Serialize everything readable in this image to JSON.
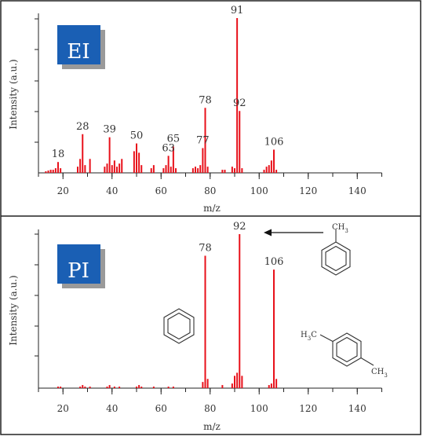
{
  "chart_data": [
    {
      "type": "bar",
      "panel": "EI",
      "xlabel": "m/z",
      "ylabel": "Intensity (a.u.)",
      "xlim": [
        10,
        150
      ],
      "x_ticks": [
        20,
        40,
        60,
        80,
        100,
        120,
        140
      ],
      "y_unit_max": 100,
      "color": "#e8101a",
      "peaks": [
        {
          "x": 13,
          "y": 1
        },
        {
          "x": 14,
          "y": 1.5
        },
        {
          "x": 15,
          "y": 2
        },
        {
          "x": 16,
          "y": 2
        },
        {
          "x": 17,
          "y": 3
        },
        {
          "x": 18,
          "y": 7
        },
        {
          "x": 19,
          "y": 3
        },
        {
          "x": 26,
          "y": 4
        },
        {
          "x": 27,
          "y": 9
        },
        {
          "x": 28,
          "y": 25
        },
        {
          "x": 29,
          "y": 5
        },
        {
          "x": 31,
          "y": 9
        },
        {
          "x": 37,
          "y": 4
        },
        {
          "x": 38,
          "y": 6
        },
        {
          "x": 39,
          "y": 23
        },
        {
          "x": 40,
          "y": 5
        },
        {
          "x": 41,
          "y": 8
        },
        {
          "x": 42,
          "y": 4
        },
        {
          "x": 43,
          "y": 6
        },
        {
          "x": 44,
          "y": 9
        },
        {
          "x": 49,
          "y": 14
        },
        {
          "x": 50,
          "y": 19
        },
        {
          "x": 51,
          "y": 13
        },
        {
          "x": 52,
          "y": 5
        },
        {
          "x": 56,
          "y": 3
        },
        {
          "x": 57,
          "y": 5
        },
        {
          "x": 61,
          "y": 3
        },
        {
          "x": 62,
          "y": 5
        },
        {
          "x": 63,
          "y": 11
        },
        {
          "x": 64,
          "y": 4
        },
        {
          "x": 65,
          "y": 17
        },
        {
          "x": 66,
          "y": 3
        },
        {
          "x": 73,
          "y": 3
        },
        {
          "x": 74,
          "y": 4
        },
        {
          "x": 75,
          "y": 3
        },
        {
          "x": 76,
          "y": 5
        },
        {
          "x": 77,
          "y": 16
        },
        {
          "x": 78,
          "y": 42
        },
        {
          "x": 79,
          "y": 4
        },
        {
          "x": 85,
          "y": 2
        },
        {
          "x": 86,
          "y": 2
        },
        {
          "x": 89,
          "y": 4
        },
        {
          "x": 90,
          "y": 3
        },
        {
          "x": 91,
          "y": 100
        },
        {
          "x": 92,
          "y": 40
        },
        {
          "x": 93,
          "y": 3
        },
        {
          "x": 102,
          "y": 2
        },
        {
          "x": 103,
          "y": 4
        },
        {
          "x": 104,
          "y": 5
        },
        {
          "x": 105,
          "y": 8
        },
        {
          "x": 106,
          "y": 15
        },
        {
          "x": 107,
          "y": 2
        }
      ],
      "labels": [
        {
          "x": 18,
          "text": "18"
        },
        {
          "x": 28,
          "text": "28"
        },
        {
          "x": 39,
          "text": "39"
        },
        {
          "x": 50,
          "text": "50"
        },
        {
          "x": 63,
          "text": "63"
        },
        {
          "x": 65,
          "text": "65"
        },
        {
          "x": 77,
          "text": "77"
        },
        {
          "x": 78,
          "text": "78"
        },
        {
          "x": 91,
          "text": "91"
        },
        {
          "x": 92,
          "text": "92"
        },
        {
          "x": 106,
          "text": "106"
        }
      ]
    },
    {
      "type": "bar",
      "panel": "PI",
      "xlabel": "m/z",
      "ylabel": "Intensity (a.u.)",
      "xlim": [
        10,
        150
      ],
      "x_ticks": [
        20,
        40,
        60,
        80,
        100,
        120,
        140
      ],
      "y_unit_max": 100,
      "color": "#e8101a",
      "peaks": [
        {
          "x": 18,
          "y": 1
        },
        {
          "x": 19,
          "y": 1
        },
        {
          "x": 27,
          "y": 1
        },
        {
          "x": 28,
          "y": 2
        },
        {
          "x": 29,
          "y": 1
        },
        {
          "x": 31,
          "y": 1
        },
        {
          "x": 38,
          "y": 1
        },
        {
          "x": 39,
          "y": 2
        },
        {
          "x": 41,
          "y": 1
        },
        {
          "x": 43,
          "y": 1
        },
        {
          "x": 50,
          "y": 1
        },
        {
          "x": 51,
          "y": 2
        },
        {
          "x": 52,
          "y": 1
        },
        {
          "x": 57,
          "y": 1
        },
        {
          "x": 63,
          "y": 1
        },
        {
          "x": 65,
          "y": 1
        },
        {
          "x": 77,
          "y": 4
        },
        {
          "x": 78,
          "y": 86
        },
        {
          "x": 79,
          "y": 6
        },
        {
          "x": 85,
          "y": 2
        },
        {
          "x": 89,
          "y": 3
        },
        {
          "x": 90,
          "y": 8
        },
        {
          "x": 91,
          "y": 10
        },
        {
          "x": 92,
          "y": 100
        },
        {
          "x": 93,
          "y": 8
        },
        {
          "x": 104,
          "y": 2
        },
        {
          "x": 105,
          "y": 3
        },
        {
          "x": 106,
          "y": 77
        },
        {
          "x": 107,
          "y": 6
        }
      ],
      "labels": [
        {
          "x": 78,
          "text": "78"
        },
        {
          "x": 92,
          "text": "92"
        },
        {
          "x": 106,
          "text": "106"
        }
      ]
    }
  ],
  "chem": {
    "methyl_label": "CH3",
    "xylene_left": "H3C",
    "xylene_right": "CH3"
  }
}
